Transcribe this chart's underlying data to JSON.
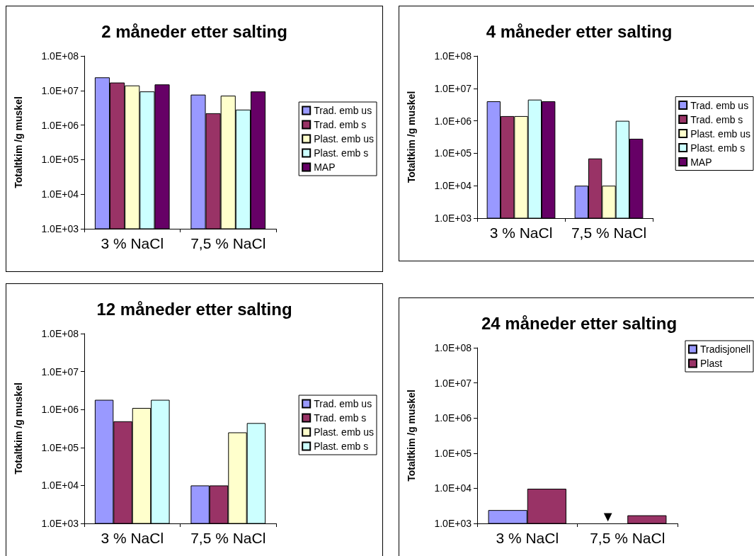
{
  "chart_data": [
    {
      "type": "bar",
      "title": "2 måneder etter salting",
      "ylabel": "Totaltkim /g muskel",
      "categories": [
        "3 % NaCl",
        "7,5 % NaCl"
      ],
      "log": true,
      "legend": "right",
      "ylim": [
        1000,
        100000000
      ],
      "yticks": [
        {
          "value": 1000,
          "label": "1.0E+03"
        },
        {
          "value": 10000,
          "label": "1.0E+04"
        },
        {
          "value": 100000,
          "label": "1.0E+05"
        },
        {
          "value": 1000000,
          "label": "1.0E+06"
        },
        {
          "value": 10000000,
          "label": "1.0E+07"
        },
        {
          "value": 100000000,
          "label": "1.0E+08"
        }
      ],
      "series": [
        {
          "name": "Trad. emb us",
          "color": "#9999ff",
          "values": [
            24000000,
            7600000
          ]
        },
        {
          "name": "Trad. emb s",
          "color": "#993366",
          "values": [
            17000000,
            2200000
          ]
        },
        {
          "name": "Plast. emb us",
          "color": "#ffffcc",
          "values": [
            14000000,
            7100000
          ]
        },
        {
          "name": "Plast. emb s",
          "color": "#ccffff",
          "values": [
            9400000,
            2800000
          ]
        },
        {
          "name": "MAP",
          "color": "#660066",
          "values": [
            15000000,
            9400000
          ]
        }
      ]
    },
    {
      "type": "bar",
      "title": "4 måneder etter salting",
      "ylabel": "Totaltkim /g muskel",
      "categories": [
        "3 % NaCl",
        "7,5 % NaCl"
      ],
      "log": true,
      "legend": "right",
      "ylim": [
        1000,
        100000000
      ],
      "yticks": [
        {
          "value": 1000,
          "label": "1.0E+03"
        },
        {
          "value": 10000,
          "label": "1.0E+04"
        },
        {
          "value": 100000,
          "label": "1.0E+05"
        },
        {
          "value": 1000000,
          "label": "1.0E+06"
        },
        {
          "value": 10000000,
          "label": "1.0E+07"
        },
        {
          "value": 100000000,
          "label": "1.0E+08"
        }
      ],
      "series": [
        {
          "name": "Trad. emb us",
          "color": "#9999ff",
          "values": [
            4000000,
            10000
          ]
        },
        {
          "name": "Trad. emb s",
          "color": "#993366",
          "values": [
            1400000,
            69000
          ]
        },
        {
          "name": "Plast. emb us",
          "color": "#ffffcc",
          "values": [
            1400000,
            10000
          ]
        },
        {
          "name": "Plast. emb s",
          "color": "#ccffff",
          "values": [
            4500000,
            1000000
          ]
        },
        {
          "name": "MAP",
          "color": "#660066",
          "values": [
            4000000,
            280000
          ]
        }
      ]
    },
    {
      "type": "bar",
      "title": "12 måneder etter salting",
      "ylabel": "Totaltkim /g muskel",
      "categories": [
        "3 % NaCl",
        "7,5 % NaCl"
      ],
      "log": true,
      "legend": "right",
      "ylim": [
        1000,
        100000000
      ],
      "yticks": [
        {
          "value": 1000,
          "label": "1.0E+03"
        },
        {
          "value": 10000,
          "label": "1.0E+04"
        },
        {
          "value": 100000,
          "label": "1.0E+05"
        },
        {
          "value": 1000000,
          "label": "1.0E+06"
        },
        {
          "value": 10000000,
          "label": "1.0E+07"
        },
        {
          "value": 100000000,
          "label": "1.0E+08"
        }
      ],
      "series": [
        {
          "name": "Trad. emb us",
          "color": "#9999ff",
          "values": [
            1800000,
            10000
          ]
        },
        {
          "name": "Trad. emb s",
          "color": "#993366",
          "values": [
            490000,
            10000
          ]
        },
        {
          "name": "Plast. emb us",
          "color": "#ffffcc",
          "values": [
            1100000,
            250000
          ]
        },
        {
          "name": "Plast. emb s",
          "color": "#ccffff",
          "values": [
            1800000,
            440000
          ]
        }
      ]
    },
    {
      "type": "bar",
      "title": "24 måneder etter salting",
      "ylabel": "Totaltkim /g muskel",
      "categories": [
        "3 % NaCl",
        "7,5 % NaCl"
      ],
      "log": true,
      "legend": "top right",
      "ylim": [
        1000,
        100000000
      ],
      "yticks": [
        {
          "value": 1000,
          "label": "1.0E+03"
        },
        {
          "value": 10000,
          "label": "1.0E+04"
        },
        {
          "value": 100000,
          "label": "1.0E+05"
        },
        {
          "value": 1000000,
          "label": "1.0E+06"
        },
        {
          "value": 10000000,
          "label": "1.0E+07"
        },
        {
          "value": 100000000,
          "label": "1.0E+08"
        }
      ],
      "series": [
        {
          "name": "Tradisjonell",
          "color": "#9999ff",
          "values": [
            2400,
            null
          ]
        },
        {
          "name": "Plast",
          "color": "#993366",
          "values": [
            9700,
            1700
          ]
        }
      ],
      "annotations": [
        {
          "text": "▼",
          "x": "7,5 % NaCl",
          "y": 1000
        }
      ]
    }
  ]
}
